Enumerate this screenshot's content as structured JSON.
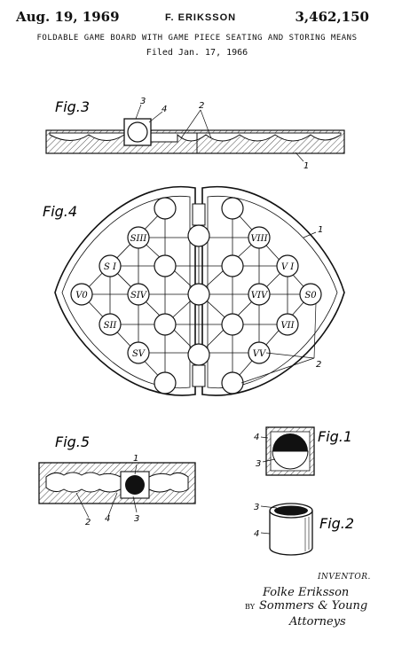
{
  "header": {
    "date": "Aug. 19, 1969",
    "inventor": "F. ERIKSSON",
    "patent_number": "3,462,150",
    "title": "FOLDABLE GAME BOARD WITH GAME PIECE SEATING AND STORING MEANS",
    "filed": "Filed Jan. 17, 1966"
  },
  "figures": {
    "fig3": {
      "label": "Fig.3",
      "refs": [
        "3",
        "4",
        "2",
        "1"
      ]
    },
    "fig4": {
      "label": "Fig.4",
      "refs": [
        "1",
        "2"
      ],
      "pieces": [
        "SIII",
        "S I",
        "V0",
        "SIV",
        "SII",
        "SV",
        "VIII",
        "V I",
        "VIV",
        "S0",
        "VII",
        "VV"
      ]
    },
    "fig5": {
      "label": "Fig.5",
      "refs": [
        "1",
        "2",
        "4",
        "3"
      ]
    },
    "fig1": {
      "label": "Fig.1",
      "refs": [
        "4",
        "3"
      ]
    },
    "fig2": {
      "label": "Fig.2",
      "refs": [
        "3",
        "4"
      ]
    }
  },
  "signature": {
    "inventor_label": "INVENTOR.",
    "name": "Folke Eriksson",
    "by": "BY",
    "firm": "Sommers & Young",
    "attorneys": "Attorneys"
  }
}
